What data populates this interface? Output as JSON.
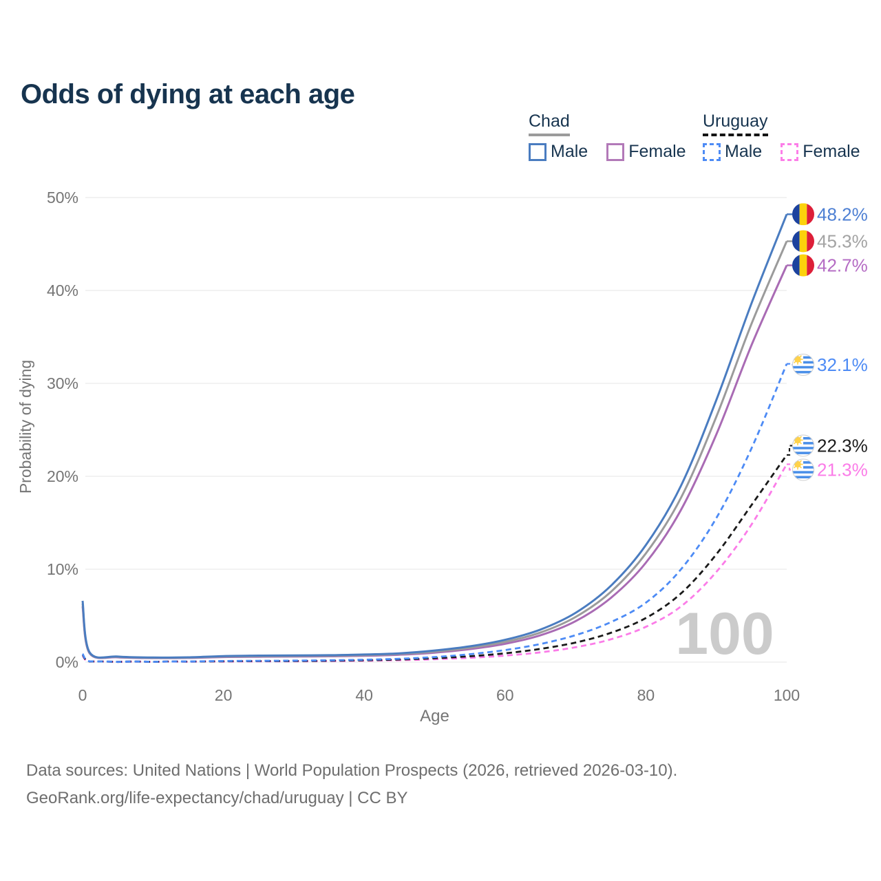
{
  "title": "Odds of dying at each age",
  "legend": {
    "groups": [
      {
        "country": "Chad",
        "underline_style": "solid",
        "underline_color": "#9b9b9b",
        "items": [
          {
            "label": "Male",
            "color": "#4a7cc0",
            "dashed": false
          },
          {
            "label": "Female",
            "color": "#b279b8",
            "dashed": false
          }
        ]
      },
      {
        "country": "Uruguay",
        "underline_style": "dashed",
        "underline_color": "#141414",
        "items": [
          {
            "label": "Male",
            "color": "#4d8bf5",
            "dashed": true
          },
          {
            "label": "Female",
            "color": "#fc7ee8",
            "dashed": true
          }
        ]
      }
    ]
  },
  "chart_data": {
    "type": "line",
    "title": "Odds of dying at each age",
    "xlabel": "Age",
    "ylabel": "Probability of dying",
    "xlim": [
      0,
      100
    ],
    "ylim": [
      0,
      50
    ],
    "x_ticks": [
      0,
      20,
      40,
      60,
      80,
      100
    ],
    "y_ticks": [
      0,
      10,
      20,
      30,
      40,
      50
    ],
    "y_tick_suffix": "%",
    "grid": "horizontal",
    "watermark": "100",
    "x": [
      0,
      1,
      5,
      10,
      15,
      20,
      25,
      30,
      35,
      40,
      45,
      50,
      55,
      60,
      65,
      70,
      75,
      80,
      85,
      90,
      95,
      100
    ],
    "series": [
      {
        "name": "Chad — Female",
        "country": "Chad",
        "sex": "Female",
        "color": "#a96bb4",
        "dashed": false,
        "values": [
          6.0,
          0.95,
          0.52,
          0.44,
          0.45,
          0.55,
          0.58,
          0.6,
          0.63,
          0.68,
          0.8,
          1.02,
          1.4,
          1.97,
          2.88,
          4.4,
          6.9,
          10.7,
          16.4,
          24.5,
          34.1,
          42.7
        ],
        "end_label": {
          "text": "42.7%",
          "color": "#b56cc4",
          "flag": "chad",
          "label_pct": 42.7
        }
      },
      {
        "name": "Chad — Both sexes",
        "country": "Chad",
        "sex": "Both",
        "color": "#9b9b9b",
        "dashed": false,
        "values": [
          6.3,
          1.0,
          0.56,
          0.47,
          0.48,
          0.6,
          0.64,
          0.66,
          0.69,
          0.75,
          0.88,
          1.13,
          1.55,
          2.18,
          3.18,
          4.85,
          7.55,
          11.7,
          17.7,
          26.4,
          36.4,
          45.3
        ],
        "end_label": {
          "text": "45.3%",
          "color": "#a3a3a3",
          "flag": "chad",
          "label_pct": 45.3
        }
      },
      {
        "name": "Chad — Male",
        "country": "Chad",
        "sex": "Male",
        "color": "#4a7cc0",
        "dashed": false,
        "values": [
          6.6,
          1.05,
          0.6,
          0.5,
          0.52,
          0.65,
          0.7,
          0.72,
          0.75,
          0.82,
          0.95,
          1.25,
          1.7,
          2.4,
          3.5,
          5.3,
          8.2,
          12.6,
          19.0,
          28.2,
          38.6,
          48.2
        ],
        "end_label": {
          "text": "48.2%",
          "color": "#4d7fd3",
          "flag": "chad",
          "label_pct": 48.2
        }
      },
      {
        "name": "Uruguay — Female",
        "country": "Uruguay",
        "sex": "Female",
        "color": "#fb7ce8",
        "dashed": true,
        "values": [
          0.7,
          0.06,
          0.02,
          0.02,
          0.04,
          0.06,
          0.08,
          0.09,
          0.11,
          0.15,
          0.21,
          0.31,
          0.47,
          0.7,
          1.05,
          1.6,
          2.45,
          3.8,
          6.0,
          9.7,
          14.8,
          21.3
        ],
        "end_label": {
          "text": "21.3%",
          "color": "#fb7ce8",
          "flag": "uruguay",
          "label_pct": 20.7
        }
      },
      {
        "name": "Uruguay — Both sexes",
        "country": "Uruguay",
        "sex": "Both",
        "color": "#1a1a1a",
        "dashed": true,
        "values": [
          0.8,
          0.07,
          0.025,
          0.025,
          0.05,
          0.09,
          0.11,
          0.12,
          0.15,
          0.2,
          0.28,
          0.42,
          0.63,
          0.95,
          1.42,
          2.1,
          3.15,
          4.75,
          7.4,
          11.6,
          16.9,
          22.3
        ],
        "end_label": {
          "text": "22.3%",
          "color": "#1c1c1c",
          "flag": "uruguay",
          "label_pct": 23.3
        }
      },
      {
        "name": "Uruguay — Male",
        "country": "Uruguay",
        "sex": "Male",
        "color": "#4d8bf5",
        "dashed": true,
        "values": [
          0.9,
          0.08,
          0.03,
          0.03,
          0.07,
          0.12,
          0.14,
          0.16,
          0.2,
          0.26,
          0.36,
          0.55,
          0.85,
          1.3,
          1.95,
          2.9,
          4.3,
          6.4,
          10.0,
          15.5,
          23.0,
          32.1
        ],
        "end_label": {
          "text": "32.1%",
          "color": "#4d8bf5",
          "flag": "uruguay",
          "label_pct": 32.0
        }
      }
    ],
    "flag_colors": {
      "chad": {
        "blue": "#1c429e",
        "yellow": "#fcd20c",
        "red": "#dd1f39"
      },
      "uruguay": {
        "stripe": "#4a8fe8",
        "white": "#ffffff",
        "sun": "#ffd24a",
        "rim": "#cfcfcf"
      }
    },
    "style": {
      "grid_color": "#ebebeb",
      "tick_color": "#757575",
      "watermark_color": "#cbcbcb"
    }
  },
  "footer": {
    "line1": "Data sources: United Nations | World Population Prospects (2026, retrieved 2026-03-10).",
    "line2": "GeoRank.org/life-expectancy/chad/uruguay | CC BY"
  }
}
